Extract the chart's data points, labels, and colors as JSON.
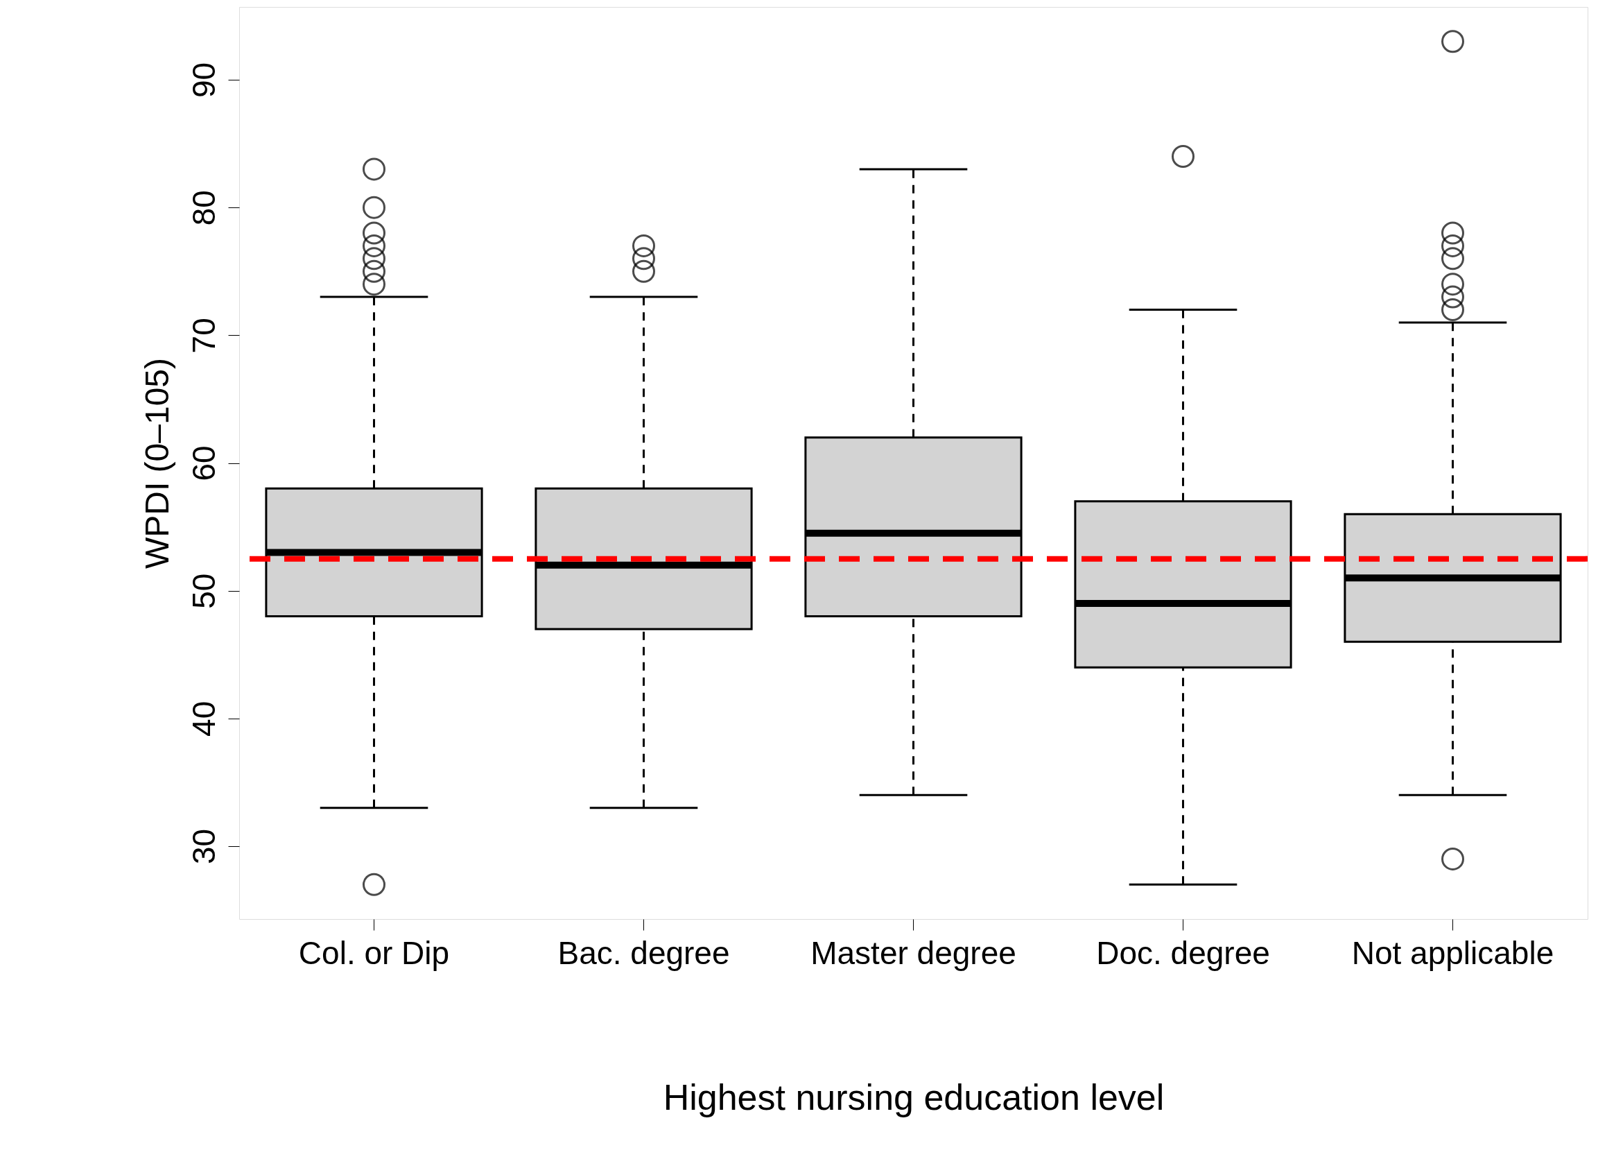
{
  "chart_data": {
    "type": "box",
    "xlabel": "Highest nursing education level",
    "ylabel": "WPDI (0–105)",
    "categories": [
      "Col. or Dip",
      "Bac. degree",
      "Master degree",
      "Doc. degree",
      "Not applicable"
    ],
    "boxes": [
      {
        "low": 33,
        "q1": 48,
        "median": 53,
        "q3": 58,
        "high": 73,
        "outliers": [
          27,
          74,
          75,
          76,
          77,
          78,
          80,
          83
        ]
      },
      {
        "low": 33,
        "q1": 47,
        "median": 52,
        "q3": 58,
        "high": 73,
        "outliers": [
          75,
          76,
          77
        ]
      },
      {
        "low": 34,
        "q1": 48,
        "median": 54.5,
        "q3": 62,
        "high": 83
      },
      {
        "low": 27,
        "q1": 44,
        "median": 49,
        "q3": 57,
        "high": 72,
        "outliers": [
          84
        ]
      },
      {
        "low": 34,
        "q1": 46,
        "median": 51,
        "q3": 56,
        "high": 71,
        "outliers": [
          29,
          72,
          73,
          74,
          76,
          77,
          78,
          93
        ]
      }
    ],
    "color": "#d3d3d3",
    "ylim": [
      24.3,
      95.7
    ],
    "yticks": [
      30,
      40,
      50,
      60,
      70,
      80,
      90
    ],
    "ref_lines": [
      {
        "axis": "y",
        "value": 52.5,
        "color": "#ff0000",
        "line_style": "dashed"
      }
    ],
    "grid": false
  }
}
